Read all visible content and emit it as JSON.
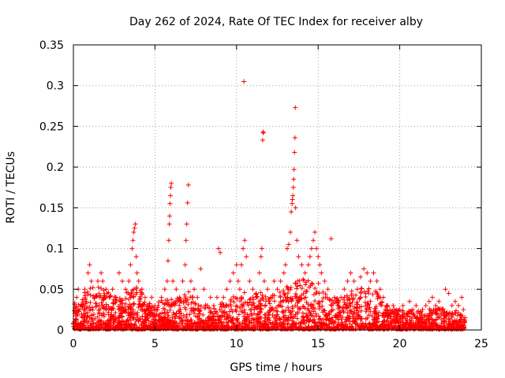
{
  "chart_data": {
    "type": "scatter",
    "title": "Day 262 of 2024, Rate Of TEC Index for receiver alby",
    "xlabel": "GPS time / hours",
    "ylabel": "ROTI / TECUs",
    "xlim": [
      0,
      25
    ],
    "ylim": [
      0,
      0.35
    ],
    "xticks": [
      0,
      5,
      10,
      15,
      20,
      25
    ],
    "xtick_labels": [
      "0",
      "5",
      "10",
      "15",
      "20",
      "25"
    ],
    "yticks": [
      0,
      0.05,
      0.1,
      0.15,
      0.2,
      0.25,
      0.3,
      0.35
    ],
    "ytick_labels": [
      "0",
      "0.05",
      "0.1",
      "0.15",
      "0.2",
      "0.25",
      "0.3",
      "0.35"
    ],
    "grid": true,
    "marker": "plus",
    "color": "#ff0000",
    "series": [
      {
        "name": "ROTI",
        "points": [
          [
            0.1,
            0.02
          ],
          [
            0.2,
            0.04
          ],
          [
            0.3,
            0.05
          ],
          [
            0.5,
            0.03
          ],
          [
            0.7,
            0.05
          ],
          [
            0.9,
            0.07
          ],
          [
            1.0,
            0.08
          ],
          [
            1.1,
            0.06
          ],
          [
            1.3,
            0.04
          ],
          [
            1.5,
            0.06
          ],
          [
            1.7,
            0.07
          ],
          [
            1.8,
            0.06
          ],
          [
            2.0,
            0.05
          ],
          [
            2.2,
            0.04
          ],
          [
            2.4,
            0.05
          ],
          [
            2.6,
            0.04
          ],
          [
            2.8,
            0.07
          ],
          [
            3.0,
            0.06
          ],
          [
            3.2,
            0.05
          ],
          [
            3.4,
            0.06
          ],
          [
            3.5,
            0.08
          ],
          [
            3.6,
            0.1
          ],
          [
            3.65,
            0.11
          ],
          [
            3.7,
            0.12
          ],
          [
            3.75,
            0.125
          ],
          [
            3.8,
            0.13
          ],
          [
            3.85,
            0.09
          ],
          [
            3.9,
            0.07
          ],
          [
            4.0,
            0.06
          ],
          [
            4.2,
            0.05
          ],
          [
            4.4,
            0.04
          ],
          [
            4.6,
            0.03
          ],
          [
            4.8,
            0.04
          ],
          [
            5.0,
            0.03
          ],
          [
            5.2,
            0.03
          ],
          [
            5.4,
            0.04
          ],
          [
            5.6,
            0.05
          ],
          [
            5.75,
            0.06
          ],
          [
            5.8,
            0.085
          ],
          [
            5.85,
            0.11
          ],
          [
            5.88,
            0.13
          ],
          [
            5.9,
            0.14
          ],
          [
            5.92,
            0.155
          ],
          [
            5.95,
            0.165
          ],
          [
            5.97,
            0.175
          ],
          [
            6.0,
            0.18
          ],
          [
            6.1,
            0.06
          ],
          [
            6.3,
            0.05
          ],
          [
            6.5,
            0.04
          ],
          [
            6.7,
            0.06
          ],
          [
            6.85,
            0.08
          ],
          [
            6.9,
            0.11
          ],
          [
            6.95,
            0.13
          ],
          [
            7.0,
            0.156
          ],
          [
            7.05,
            0.178
          ],
          [
            7.2,
            0.06
          ],
          [
            7.4,
            0.05
          ],
          [
            7.6,
            0.04
          ],
          [
            7.8,
            0.075
          ],
          [
            8.0,
            0.05
          ],
          [
            8.2,
            0.03
          ],
          [
            8.4,
            0.04
          ],
          [
            8.6,
            0.03
          ],
          [
            8.8,
            0.04
          ],
          [
            8.9,
            0.1
          ],
          [
            9.0,
            0.095
          ],
          [
            9.2,
            0.04
          ],
          [
            9.4,
            0.05
          ],
          [
            9.6,
            0.06
          ],
          [
            9.8,
            0.07
          ],
          [
            10.0,
            0.08
          ],
          [
            10.1,
            0.06
          ],
          [
            10.2,
            0.05
          ],
          [
            10.3,
            0.08
          ],
          [
            10.4,
            0.1
          ],
          [
            10.45,
            0.305
          ],
          [
            10.5,
            0.11
          ],
          [
            10.6,
            0.09
          ],
          [
            10.8,
            0.06
          ],
          [
            11.0,
            0.05
          ],
          [
            11.2,
            0.04
          ],
          [
            11.4,
            0.07
          ],
          [
            11.5,
            0.09
          ],
          [
            11.55,
            0.1
          ],
          [
            11.6,
            0.233
          ],
          [
            11.62,
            0.243
          ],
          [
            11.65,
            0.242
          ],
          [
            11.7,
            0.06
          ],
          [
            11.9,
            0.05
          ],
          [
            12.1,
            0.04
          ],
          [
            12.3,
            0.06
          ],
          [
            12.5,
            0.05
          ],
          [
            12.7,
            0.06
          ],
          [
            12.9,
            0.07
          ],
          [
            13.0,
            0.08
          ],
          [
            13.1,
            0.1
          ],
          [
            13.2,
            0.105
          ],
          [
            13.3,
            0.12
          ],
          [
            13.35,
            0.145
          ],
          [
            13.4,
            0.155
          ],
          [
            13.42,
            0.16
          ],
          [
            13.45,
            0.165
          ],
          [
            13.48,
            0.175
          ],
          [
            13.5,
            0.185
          ],
          [
            13.52,
            0.197
          ],
          [
            13.55,
            0.218
          ],
          [
            13.58,
            0.236
          ],
          [
            13.6,
            0.273
          ],
          [
            13.62,
            0.15
          ],
          [
            13.7,
            0.11
          ],
          [
            13.8,
            0.09
          ],
          [
            14.0,
            0.08
          ],
          [
            14.2,
            0.07
          ],
          [
            14.4,
            0.08
          ],
          [
            14.5,
            0.09
          ],
          [
            14.6,
            0.1
          ],
          [
            14.7,
            0.11
          ],
          [
            14.8,
            0.12
          ],
          [
            14.9,
            0.1
          ],
          [
            15.0,
            0.09
          ],
          [
            15.1,
            0.08
          ],
          [
            15.2,
            0.07
          ],
          [
            15.4,
            0.06
          ],
          [
            15.6,
            0.05
          ],
          [
            15.8,
            0.112
          ],
          [
            16.0,
            0.04
          ],
          [
            16.2,
            0.03
          ],
          [
            16.4,
            0.04
          ],
          [
            16.6,
            0.05
          ],
          [
            16.8,
            0.06
          ],
          [
            17.0,
            0.07
          ],
          [
            17.2,
            0.06
          ],
          [
            17.4,
            0.05
          ],
          [
            17.6,
            0.065
          ],
          [
            17.8,
            0.075
          ],
          [
            18.0,
            0.07
          ],
          [
            18.2,
            0.06
          ],
          [
            18.4,
            0.07
          ],
          [
            18.6,
            0.06
          ],
          [
            18.8,
            0.05
          ],
          [
            19.0,
            0.04
          ],
          [
            19.2,
            0.03
          ],
          [
            19.4,
            0.025
          ],
          [
            19.6,
            0.03
          ],
          [
            19.8,
            0.02
          ],
          [
            20.0,
            0.025
          ],
          [
            20.2,
            0.03
          ],
          [
            20.4,
            0.02
          ],
          [
            20.6,
            0.035
          ],
          [
            20.8,
            0.025
          ],
          [
            21.0,
            0.03
          ],
          [
            21.2,
            0.02
          ],
          [
            21.4,
            0.025
          ],
          [
            21.6,
            0.03
          ],
          [
            21.8,
            0.035
          ],
          [
            22.0,
            0.04
          ],
          [
            22.2,
            0.03
          ],
          [
            22.4,
            0.035
          ],
          [
            22.6,
            0.025
          ],
          [
            22.8,
            0.05
          ],
          [
            23.0,
            0.045
          ],
          [
            23.2,
            0.03
          ],
          [
            23.4,
            0.035
          ],
          [
            23.6,
            0.03
          ],
          [
            23.8,
            0.04
          ],
          [
            23.9,
            0.025
          ],
          [
            24.0,
            0.015
          ]
        ],
        "bulk_envelope": [
          [
            0.0,
            0.03
          ],
          [
            0.5,
            0.04
          ],
          [
            1.0,
            0.05
          ],
          [
            1.5,
            0.05
          ],
          [
            2.0,
            0.045
          ],
          [
            2.5,
            0.04
          ],
          [
            3.0,
            0.04
          ],
          [
            3.5,
            0.05
          ],
          [
            4.0,
            0.05
          ],
          [
            4.5,
            0.03
          ],
          [
            5.0,
            0.03
          ],
          [
            5.5,
            0.035
          ],
          [
            6.0,
            0.04
          ],
          [
            6.5,
            0.035
          ],
          [
            7.0,
            0.045
          ],
          [
            7.5,
            0.035
          ],
          [
            8.0,
            0.03
          ],
          [
            8.5,
            0.025
          ],
          [
            9.0,
            0.03
          ],
          [
            9.5,
            0.035
          ],
          [
            10.0,
            0.04
          ],
          [
            10.5,
            0.045
          ],
          [
            11.0,
            0.04
          ],
          [
            11.5,
            0.045
          ],
          [
            12.0,
            0.04
          ],
          [
            12.5,
            0.04
          ],
          [
            13.0,
            0.05
          ],
          [
            13.5,
            0.055
          ],
          [
            14.0,
            0.06
          ],
          [
            14.5,
            0.065
          ],
          [
            15.0,
            0.055
          ],
          [
            15.5,
            0.04
          ],
          [
            16.0,
            0.035
          ],
          [
            16.5,
            0.04
          ],
          [
            17.0,
            0.045
          ],
          [
            17.5,
            0.05
          ],
          [
            18.0,
            0.05
          ],
          [
            18.5,
            0.045
          ],
          [
            19.0,
            0.035
          ],
          [
            19.5,
            0.025
          ],
          [
            20.0,
            0.022
          ],
          [
            20.5,
            0.022
          ],
          [
            21.0,
            0.022
          ],
          [
            21.5,
            0.022
          ],
          [
            22.0,
            0.025
          ],
          [
            22.5,
            0.025
          ],
          [
            23.0,
            0.025
          ],
          [
            23.5,
            0.022
          ],
          [
            24.0,
            0.015
          ]
        ]
      }
    ]
  }
}
